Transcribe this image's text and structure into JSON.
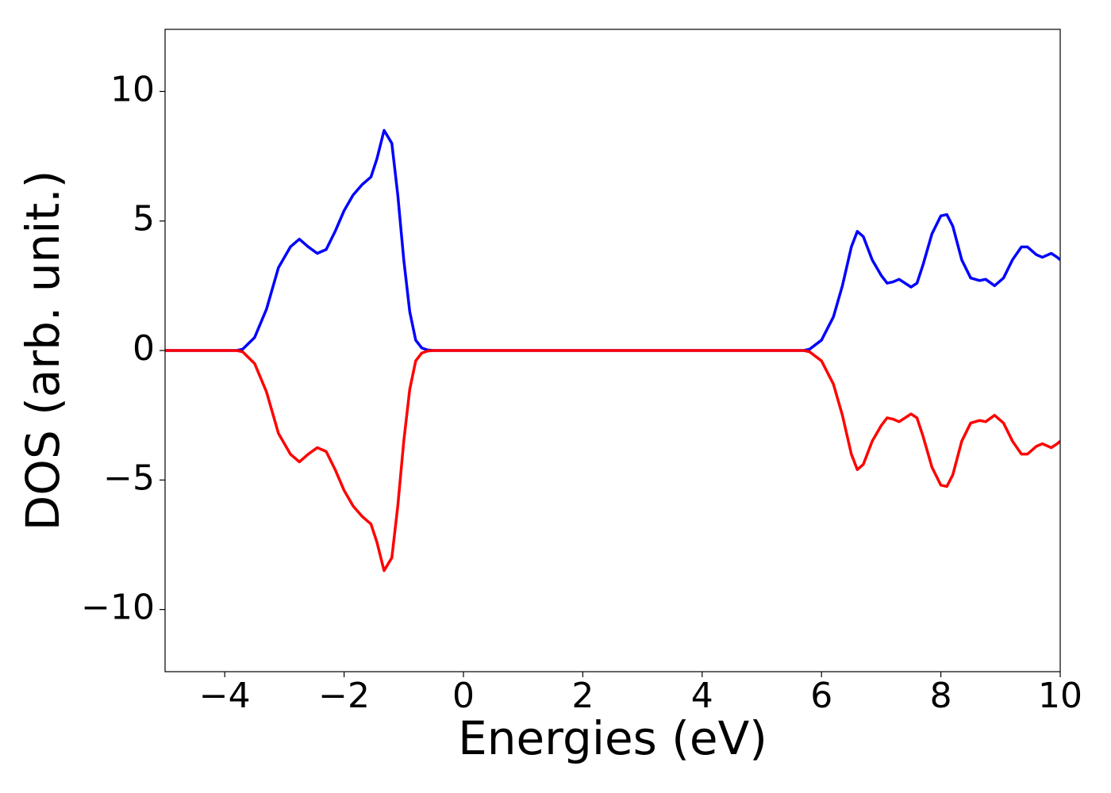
{
  "chart_data": {
    "type": "line",
    "xlabel": "Energies (eV)",
    "ylabel": "DOS (arb. unit.)",
    "xlim": [
      -5,
      10
    ],
    "ylim": [
      -12.4,
      12.4
    ],
    "xticks": [
      {
        "value": -4,
        "label": "−4"
      },
      {
        "value": -2,
        "label": "−2"
      },
      0,
      2,
      4,
      6,
      8,
      10
    ],
    "yticks": [
      {
        "value": -10,
        "label": "−10"
      },
      {
        "value": -5,
        "label": "−5"
      },
      0,
      5,
      10
    ],
    "x": [
      -5,
      -3.8,
      -3.7,
      -3.5,
      -3.3,
      -3.1,
      -2.9,
      -2.75,
      -2.6,
      -2.45,
      -2.3,
      -2.15,
      -2.0,
      -1.85,
      -1.7,
      -1.55,
      -1.45,
      -1.33,
      -1.2,
      -1.1,
      -1.0,
      -0.9,
      -0.8,
      -0.7,
      -0.6,
      -0.5,
      5.7,
      5.8,
      6.0,
      6.2,
      6.35,
      6.5,
      6.6,
      6.7,
      6.85,
      7.0,
      7.1,
      7.2,
      7.3,
      7.4,
      7.5,
      7.6,
      7.7,
      7.85,
      8.0,
      8.1,
      8.2,
      8.35,
      8.5,
      8.65,
      8.75,
      8.9,
      9.05,
      9.2,
      9.35,
      9.45,
      9.6,
      9.7,
      9.85,
      9.95,
      10
    ],
    "series": [
      {
        "color": "#0000ff",
        "values": [
          0,
          0,
          0.05,
          0.5,
          1.6,
          3.2,
          4.0,
          4.3,
          4.0,
          3.75,
          3.9,
          4.6,
          5.4,
          6.0,
          6.4,
          6.7,
          7.4,
          8.5,
          8.0,
          6.0,
          3.5,
          1.5,
          0.4,
          0.1,
          0.02,
          0,
          0,
          0.05,
          0.4,
          1.3,
          2.5,
          4.0,
          4.6,
          4.4,
          3.5,
          2.9,
          2.6,
          2.65,
          2.75,
          2.6,
          2.45,
          2.6,
          3.3,
          4.5,
          5.2,
          5.25,
          4.8,
          3.5,
          2.8,
          2.7,
          2.75,
          2.5,
          2.8,
          3.5,
          4.0,
          4.0,
          3.7,
          3.6,
          3.75,
          3.6,
          3.5
        ]
      },
      {
        "color": "#ff0000",
        "values": [
          0,
          0,
          -0.05,
          -0.5,
          -1.6,
          -3.2,
          -4.0,
          -4.3,
          -4.0,
          -3.75,
          -3.9,
          -4.6,
          -5.4,
          -6.0,
          -6.4,
          -6.7,
          -7.4,
          -8.5,
          -8.0,
          -6.0,
          -3.5,
          -1.5,
          -0.4,
          -0.1,
          -0.02,
          0,
          0,
          -0.05,
          -0.4,
          -1.3,
          -2.5,
          -4.0,
          -4.6,
          -4.4,
          -3.5,
          -2.9,
          -2.6,
          -2.65,
          -2.75,
          -2.6,
          -2.45,
          -2.6,
          -3.3,
          -4.5,
          -5.2,
          -5.25,
          -4.8,
          -3.5,
          -2.8,
          -2.7,
          -2.75,
          -2.5,
          -2.8,
          -3.5,
          -4.0,
          -4.0,
          -3.7,
          -3.6,
          -3.75,
          -3.6,
          -3.5
        ]
      }
    ]
  }
}
